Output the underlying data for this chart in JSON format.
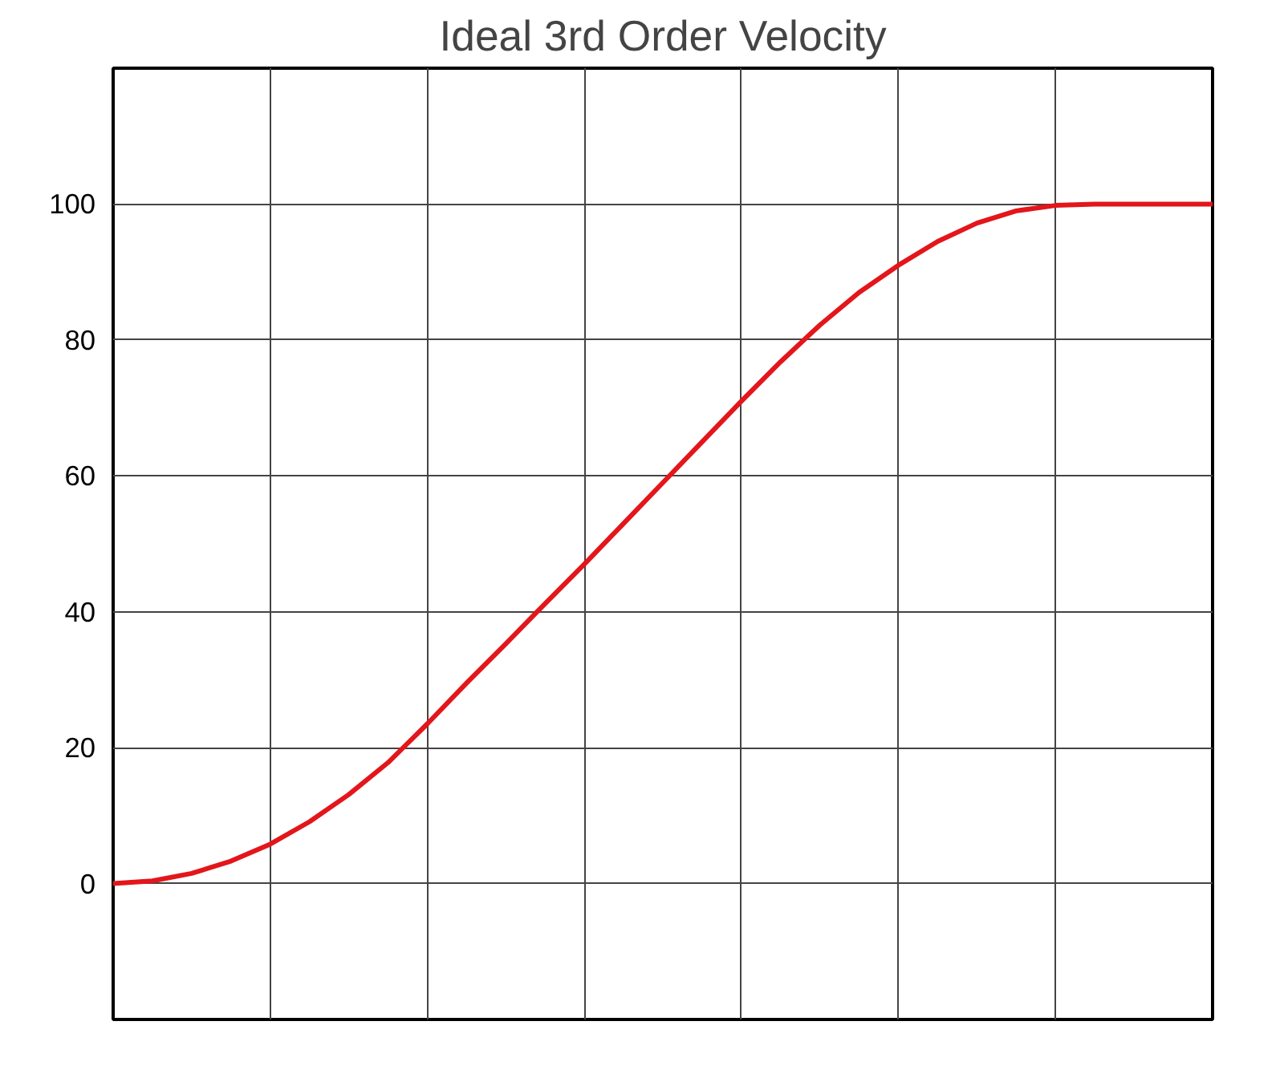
{
  "chart_data": {
    "type": "line",
    "title": "Ideal 3rd Order Velocity",
    "categories": [
      null,
      null,
      null,
      null,
      null,
      null,
      null,
      null,
      null,
      null,
      null,
      null,
      null,
      null,
      null,
      null,
      null,
      null,
      null,
      null,
      null,
      null,
      null,
      null,
      null,
      null,
      null,
      null,
      null
    ],
    "series": [
      {
        "color": "#e3161b",
        "values": [
          0,
          0.4,
          1.5,
          3.3,
          5.8,
          9.1,
          13.1,
          17.8,
          23.5,
          29.5,
          35.3,
          41.2,
          47,
          53,
          59,
          65,
          71,
          76.8,
          82.2,
          87,
          91,
          94.5,
          97.2,
          99,
          99.8,
          100,
          100,
          100,
          100
        ]
      }
    ],
    "ylim": [
      -20,
      120
    ],
    "yticks": [
      0,
      20,
      40,
      60,
      80,
      100
    ],
    "grid": true,
    "tick_labels": "y",
    "line_style": "solid",
    "marker": "none"
  }
}
